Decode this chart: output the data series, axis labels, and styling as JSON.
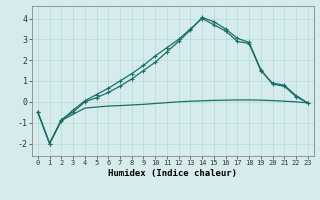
{
  "xlabel": "Humidex (Indice chaleur)",
  "bg_color": "#d6ecec",
  "grid_color": "#b8d8d8",
  "line_color": "#1a6e6a",
  "xlim": [
    -0.5,
    23.5
  ],
  "ylim": [
    -2.6,
    4.6
  ],
  "xticks": [
    0,
    1,
    2,
    3,
    4,
    5,
    6,
    7,
    8,
    9,
    10,
    11,
    12,
    13,
    14,
    15,
    16,
    17,
    18,
    19,
    20,
    21,
    22,
    23
  ],
  "yticks": [
    -2,
    -1,
    0,
    1,
    2,
    3,
    4
  ],
  "series1_x": [
    0,
    1,
    2,
    3,
    4,
    5,
    6,
    7,
    8,
    9,
    10,
    11,
    12,
    13,
    14,
    15,
    16,
    17,
    18,
    19,
    20,
    21,
    22,
    23
  ],
  "series1_y": [
    -0.5,
    -2.0,
    -0.9,
    -0.6,
    -0.3,
    -0.25,
    -0.2,
    -0.18,
    -0.15,
    -0.12,
    -0.08,
    -0.04,
    0.0,
    0.03,
    0.05,
    0.07,
    0.08,
    0.09,
    0.09,
    0.08,
    0.06,
    0.03,
    0.0,
    -0.05
  ],
  "series2_x": [
    0,
    1,
    2,
    3,
    4,
    5,
    6,
    7,
    8,
    9,
    10,
    11,
    12,
    13,
    14,
    15,
    16,
    17,
    18,
    19,
    20,
    21,
    22,
    23
  ],
  "series2_y": [
    -0.5,
    -2.0,
    -0.9,
    -0.4,
    0.05,
    0.35,
    0.65,
    1.0,
    1.35,
    1.75,
    2.2,
    2.6,
    3.0,
    3.5,
    4.0,
    3.7,
    3.4,
    2.9,
    2.8,
    1.5,
    0.9,
    0.8,
    0.3,
    -0.05
  ],
  "series3_x": [
    0,
    1,
    2,
    3,
    4,
    5,
    6,
    7,
    8,
    9,
    10,
    11,
    12,
    13,
    14,
    15,
    16,
    17,
    18,
    19,
    20,
    21,
    22,
    23
  ],
  "series3_y": [
    -0.5,
    -2.0,
    -0.85,
    -0.5,
    0.0,
    0.2,
    0.45,
    0.75,
    1.1,
    1.5,
    1.9,
    2.4,
    2.9,
    3.45,
    4.05,
    3.85,
    3.5,
    3.05,
    2.85,
    1.55,
    0.85,
    0.75,
    0.25,
    -0.05
  ]
}
